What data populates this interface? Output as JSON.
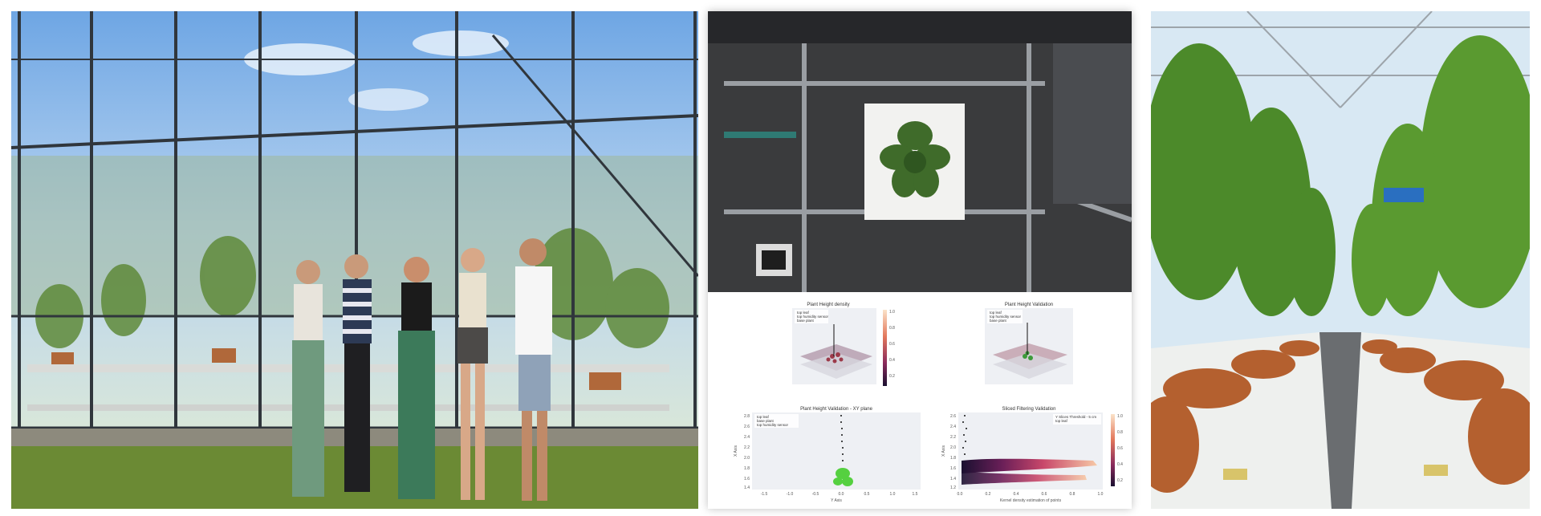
{
  "colors": {
    "sky": "#8ab8ea",
    "grass": "#6f8f34",
    "frame": "#333a40",
    "leaf": "#3f6b2a",
    "pot": "#b4602f",
    "bench": "#eef0ee",
    "lab_frame": "#8f9398"
  },
  "top_left_chart": {
    "title": "Plant Height density",
    "legend": [
      "top leaf",
      "top humidity sensor",
      "base plant"
    ],
    "colorbar_ticks": [
      "1.0",
      "0.8",
      "0.6",
      "0.4",
      "0.2"
    ]
  },
  "top_right_chart": {
    "title": "Plant Height Validation",
    "legend": [
      "top leaf",
      "top humidity sensor",
      "base plant"
    ]
  },
  "bottom_left_chart": {
    "title": "Plant Height Validation - XY plane",
    "legend": [
      "top leaf",
      "base plant",
      "top humidity sensor"
    ],
    "xlabel": "Y Axis",
    "ylabel": "X Axis",
    "xticks": [
      "-1.5",
      "-1.0",
      "-0.5",
      "0.0",
      "0.5",
      "1.0",
      "1.5"
    ],
    "yticks": [
      "2.8",
      "2.6",
      "2.4",
      "2.2",
      "2.0",
      "1.8",
      "1.6",
      "1.4"
    ]
  },
  "bottom_right_chart": {
    "title": "Sliced Filtering Validation",
    "legend": [
      "Y Slices Threshold - 5 cm",
      "top leaf"
    ],
    "xlabel": "Kernel density estimation of points",
    "ylabel": "X Axis",
    "xticks": [
      "0.0",
      "0.2",
      "0.4",
      "0.6",
      "0.8",
      "1.0"
    ],
    "yticks": [
      "2.6",
      "2.4",
      "2.2",
      "2.0",
      "1.8",
      "1.6",
      "1.4",
      "1.2"
    ],
    "colorbar_ticks": [
      "1.0",
      "0.8",
      "0.6",
      "0.4",
      "0.2"
    ]
  }
}
